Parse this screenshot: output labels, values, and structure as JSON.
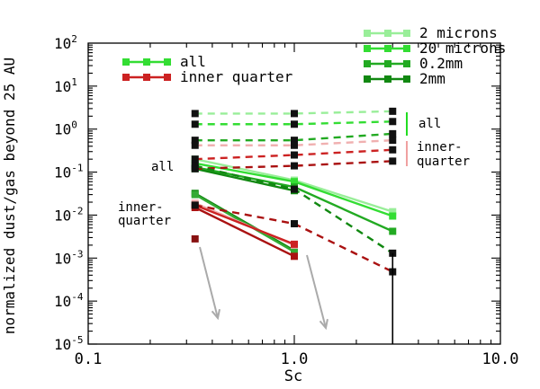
{
  "chart_data": {
    "type": "line",
    "xscale": "log",
    "yscale": "log",
    "xlim": [
      0.1,
      10.0
    ],
    "ylim": [
      1e-05,
      100
    ],
    "xlabel": "Sc",
    "ylabel": "normalized dust/gas beyond 25 AU",
    "x_tick_labels": [
      {
        "value": 0.1,
        "label": "0.1"
      },
      {
        "value": 1.0,
        "label": "1.0"
      },
      {
        "value": 10.0,
        "label": "10.0"
      }
    ],
    "y_tick_labels": [
      {
        "value": 100,
        "mant": "10",
        "exp": "2"
      },
      {
        "value": 10,
        "mant": "10",
        "exp": "1"
      },
      {
        "value": 1,
        "mant": "10",
        "exp": "0"
      },
      {
        "value": 0.1,
        "mant": "10",
        "exp": "-1"
      },
      {
        "value": 0.01,
        "mant": "10",
        "exp": "-2"
      },
      {
        "value": 0.001,
        "mant": "10",
        "exp": "-3"
      },
      {
        "value": 0.0001,
        "mant": "10",
        "exp": "-4"
      },
      {
        "value": 1e-05,
        "mant": "10",
        "exp": "-5"
      }
    ],
    "x": [
      0.33,
      1.0,
      3.0
    ],
    "grain_legend": [
      {
        "label": "2 microns",
        "color": "#99ee99"
      },
      {
        "label": "20 microns",
        "color": "#33dd33"
      },
      {
        "label": "0.2mm",
        "color": "#22aa22"
      },
      {
        "label": "2mm",
        "color": "#118811"
      }
    ],
    "region_legend": [
      {
        "label": "all",
        "color": "#33dd33"
      },
      {
        "label": "inner quarter",
        "color": "#cc2222"
      }
    ],
    "annotations": {
      "all_left": "all",
      "inner_left_1": "inner-",
      "inner_left_2": "quarter",
      "all_right": "all",
      "inner_right_1": "inner-",
      "inner_right_2": "quarter"
    },
    "series": [
      {
        "style": "solid",
        "color": "#99ee99",
        "values": [
          0.2,
          0.065,
          0.012
        ]
      },
      {
        "style": "solid",
        "color": "#33dd33",
        "values": [
          0.16,
          0.06,
          0.0095
        ]
      },
      {
        "style": "solid",
        "color": "#22aa22",
        "values": [
          0.13,
          0.045,
          0.0042
        ]
      },
      {
        "style": "solid",
        "color": "#118811",
        "values": [
          0.12,
          0.037,
          null
        ]
      },
      {
        "style": "solid",
        "color": "#118811",
        "values": [
          0.032,
          0.0015,
          null
        ]
      },
      {
        "style": "solid",
        "color": "#33aa33",
        "values": [
          0.03,
          0.0014,
          null
        ]
      },
      {
        "style": "solid",
        "color": "#f0b0b0",
        "values": [
          0.019,
          0.002,
          null
        ]
      },
      {
        "style": "solid",
        "color": "#cc2222",
        "values": [
          0.017,
          0.0021,
          null
        ]
      },
      {
        "style": "solid",
        "color": "#aa1111",
        "values": [
          0.015,
          0.0011,
          null
        ]
      },
      {
        "style": "solid",
        "color": "#881111",
        "values": [
          0.0028,
          null,
          null
        ]
      },
      {
        "style": "dashed",
        "color": "#99ee99",
        "values": [
          2.3,
          2.3,
          2.6
        ]
      },
      {
        "style": "dashed",
        "color": "#33dd33",
        "values": [
          1.3,
          1.3,
          1.5
        ]
      },
      {
        "style": "dashed",
        "color": "#22aa22",
        "values": [
          0.55,
          0.55,
          0.78
        ]
      },
      {
        "style": "dashed",
        "color": "#f0b0b0",
        "values": [
          0.42,
          0.42,
          0.55
        ]
      },
      {
        "style": "dashed",
        "color": "#cc2222",
        "values": [
          0.2,
          0.25,
          0.33
        ]
      },
      {
        "style": "dashed",
        "color": "#aa1111",
        "values": [
          0.12,
          0.14,
          0.18
        ]
      },
      {
        "style": "dashed",
        "color": "#118811",
        "values": [
          0.14,
          0.04,
          0.0013
        ]
      },
      {
        "style": "dashed",
        "color": "#aa1111",
        "values": [
          0.017,
          0.0063,
          0.00048
        ]
      }
    ]
  }
}
